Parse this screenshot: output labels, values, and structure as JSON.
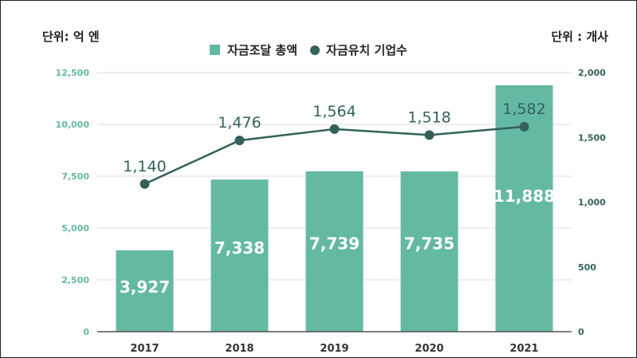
{
  "unit_left": "단위: 억 엔",
  "unit_right": "단위 : 개사",
  "legend": {
    "bar_label": "자금조달 총액",
    "line_label": "자금유치 기업수"
  },
  "colors": {
    "bar": "#64b9a2",
    "line": "#33615a",
    "grid": "#dddddd",
    "axis": "#555555"
  },
  "chart_data": {
    "type": "bar",
    "categories": [
      "2017",
      "2018",
      "2019",
      "2020",
      "2021"
    ],
    "series": [
      {
        "name": "자금조달 총액",
        "type": "bar",
        "axis": "left",
        "values": [
          3927,
          7338,
          7739,
          7735,
          11888
        ],
        "labels": [
          "3,927",
          "7,338",
          "7,739",
          "7,735",
          "11,888"
        ]
      },
      {
        "name": "자금유치 기업수",
        "type": "line",
        "axis": "right",
        "values": [
          1140,
          1476,
          1564,
          1518,
          1582
        ],
        "labels": [
          "1,140",
          "1,476",
          "1,564",
          "1,518",
          "1,582"
        ]
      }
    ],
    "left_axis": {
      "min": 0,
      "max": 12500,
      "ticks": [
        0,
        2500,
        5000,
        7500,
        10000,
        12500
      ],
      "tick_labels": [
        "0",
        "2,500",
        "5,000",
        "7,500",
        "10,000",
        "12,500"
      ]
    },
    "right_axis": {
      "min": 0,
      "max": 2000,
      "ticks": [
        0,
        500,
        1000,
        1500,
        2000
      ],
      "tick_labels": [
        "0",
        "500",
        "1,000",
        "1,500",
        "2,000"
      ]
    },
    "grid": true,
    "legend_position": "top-center"
  }
}
